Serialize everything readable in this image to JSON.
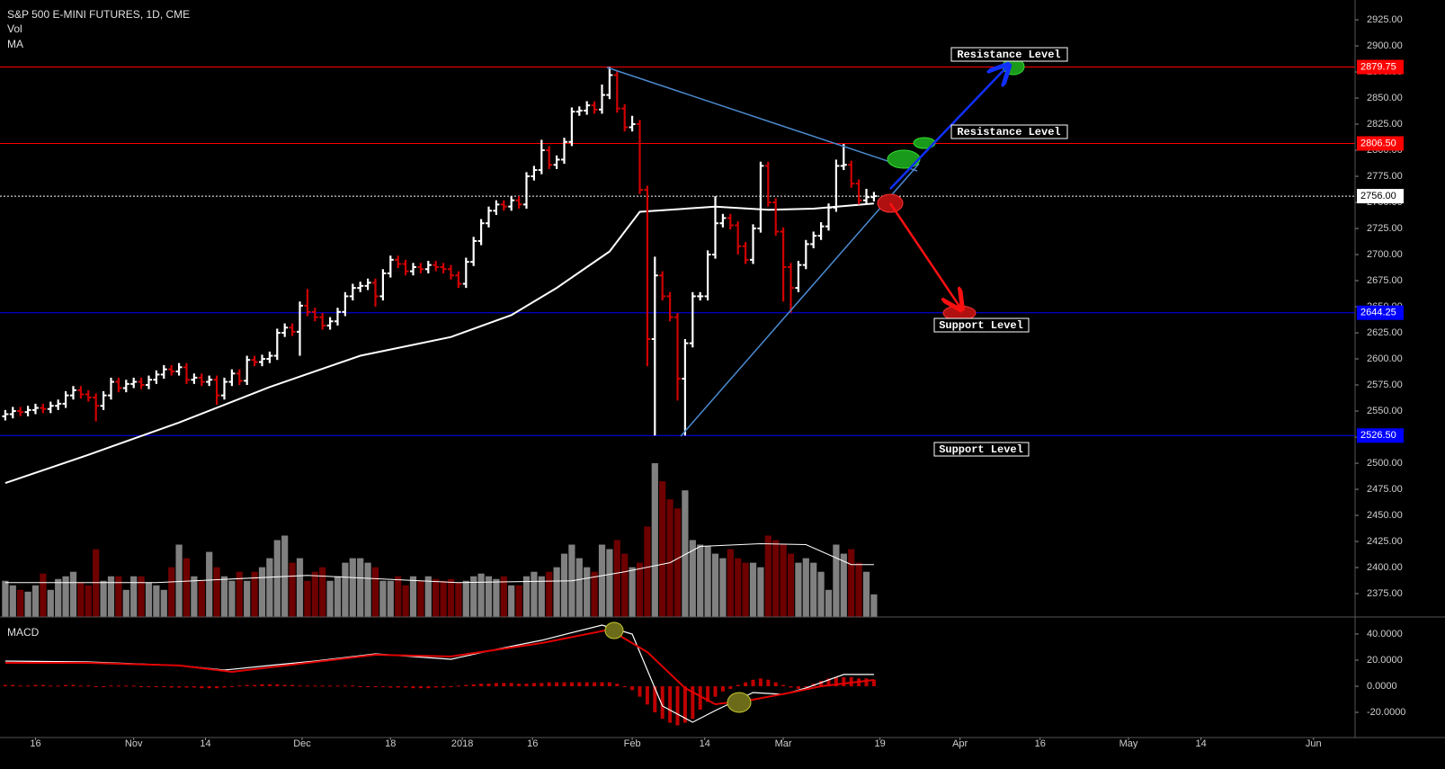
{
  "chart_data": {
    "type": "ohlc",
    "title": "S&P 500 E-MINI FUTURES, 1D, CME",
    "indicators": [
      "Vol",
      "MA"
    ],
    "up_color": "#ffffff",
    "down_color": "#d00000",
    "xlim": [
      -0.7,
      178.7
    ],
    "xticks": [
      {
        "value": 4,
        "label": "16"
      },
      {
        "value": 17,
        "label": "Nov"
      },
      {
        "value": 26.5,
        "label": "14"
      },
      {
        "value": 39.3,
        "label": "Dec"
      },
      {
        "value": 51,
        "label": "18"
      },
      {
        "value": 60.5,
        "label": "2018"
      },
      {
        "value": 69.8,
        "label": "16"
      },
      {
        "value": 83,
        "label": "Feb"
      },
      {
        "value": 92.6,
        "label": "14"
      },
      {
        "value": 103,
        "label": "Mar"
      },
      {
        "value": 115.8,
        "label": "19"
      },
      {
        "value": 126.4,
        "label": "Apr"
      },
      {
        "value": 137,
        "label": "16"
      },
      {
        "value": 148.7,
        "label": "May"
      },
      {
        "value": 158.3,
        "label": "14"
      },
      {
        "value": 173.2,
        "label": "Jun"
      }
    ],
    "ylim": [
      2352.6,
      2944
    ],
    "yticks": [
      {
        "value": 2925,
        "label": "2925.00"
      },
      {
        "value": 2900,
        "label": "2900.00"
      },
      {
        "value": 2875,
        "label": "2875.00"
      },
      {
        "value": 2850,
        "label": "2850.00"
      },
      {
        "value": 2825,
        "label": "2825.00"
      },
      {
        "value": 2800,
        "label": "2800.00"
      },
      {
        "value": 2775,
        "label": "2775.00"
      },
      {
        "value": 2750,
        "label": "2750.00"
      },
      {
        "value": 2725,
        "label": "2725.00"
      },
      {
        "value": 2700,
        "label": "2700.00"
      },
      {
        "value": 2675,
        "label": "2675.00"
      },
      {
        "value": 2650,
        "label": "2650.00"
      },
      {
        "value": 2625,
        "label": "2625.00"
      },
      {
        "value": 2600,
        "label": "2600.00"
      },
      {
        "value": 2575,
        "label": "2575.00"
      },
      {
        "value": 2550,
        "label": "2550.00"
      },
      {
        "value": 2525,
        "label": "2525.00"
      },
      {
        "value": 2500,
        "label": "2500.00"
      },
      {
        "value": 2475,
        "label": "2475.00"
      },
      {
        "value": 2450,
        "label": "2450.00"
      },
      {
        "value": 2425,
        "label": "2425.00"
      },
      {
        "value": 2400,
        "label": "2400.00"
      },
      {
        "value": 2375,
        "label": "2375.00"
      }
    ],
    "levels": [
      {
        "value": 2879.75,
        "label": "2879.75",
        "color": "#ff0000",
        "line": "solid"
      },
      {
        "value": 2806.5,
        "label": "2806.50",
        "color": "#ff0000",
        "line": "solid"
      },
      {
        "value": 2756,
        "label": "2756.00",
        "color": "#ffffff",
        "line": "dotted"
      },
      {
        "value": 2644.25,
        "label": "2644.25",
        "color": "#0000ff",
        "line": "solid"
      },
      {
        "value": 2526.5,
        "label": "2526.50",
        "color": "#0000ff",
        "line": "solid"
      }
    ],
    "annotations": [
      "Resistance Level",
      "Resistance Level",
      "Support Level",
      "Support Level"
    ],
    "ohlc": {
      "open": [
        2545,
        2547,
        2550,
        2549,
        2551,
        2553,
        2552,
        2555,
        2557,
        2565,
        2570,
        2566,
        2563,
        2555,
        2565,
        2578,
        2572,
        2576,
        2578,
        2575,
        2580,
        2585,
        2590,
        2588,
        2592,
        2580,
        2582,
        2578,
        2580,
        2565,
        2578,
        2586,
        2579,
        2599,
        2597,
        2600,
        2603,
        2625,
        2630,
        2626,
        2651,
        2645,
        2640,
        2632,
        2636,
        2645,
        2660,
        2668,
        2670,
        2673,
        2660,
        2682,
        2695,
        2691,
        2684,
        2688,
        2686,
        2690,
        2688,
        2686,
        2680,
        2672,
        2693,
        2713,
        2730,
        2742,
        2748,
        2746,
        2752,
        2748,
        2775,
        2781,
        2800,
        2786,
        2791,
        2808,
        2837,
        2838,
        2843,
        2839,
        2853,
        2872,
        2840,
        2822,
        2825,
        2762,
        2619,
        2680,
        2660,
        2640,
        2581,
        2615,
        2660,
        2660,
        2700,
        2730,
        2735,
        2728,
        2708,
        2695,
        2725,
        2785,
        2750,
        2722,
        2688,
        2668,
        2690,
        2710,
        2718,
        2727,
        2745,
        2785,
        2786,
        2768,
        2752,
        2755
      ],
      "high": [
        2551,
        2554,
        2554,
        2555,
        2557,
        2557,
        2559,
        2561,
        2569,
        2574,
        2574,
        2570,
        2567,
        2569,
        2582,
        2582,
        2580,
        2582,
        2582,
        2584,
        2589,
        2594,
        2594,
        2596,
        2596,
        2586,
        2586,
        2584,
        2584,
        2582,
        2590,
        2590,
        2603,
        2603,
        2604,
        2607,
        2629,
        2634,
        2634,
        2655,
        2667,
        2649,
        2644,
        2640,
        2649,
        2664,
        2672,
        2674,
        2677,
        2677,
        2686,
        2699,
        2699,
        2695,
        2692,
        2692,
        2694,
        2694,
        2692,
        2690,
        2684,
        2697,
        2717,
        2734,
        2746,
        2752,
        2752,
        2756,
        2756,
        2779,
        2785,
        2810,
        2804,
        2795,
        2812,
        2841,
        2842,
        2847,
        2847,
        2863,
        2879.75,
        2876,
        2844,
        2833,
        2829,
        2766,
        2698,
        2684,
        2664,
        2644,
        2619,
        2664,
        2664,
        2704,
        2756,
        2739,
        2739,
        2732,
        2712,
        2729,
        2789,
        2789,
        2754,
        2726,
        2692,
        2694,
        2714,
        2722,
        2731,
        2749,
        2791,
        2806,
        2790,
        2772,
        2763,
        2760
      ],
      "low": [
        2541,
        2543,
        2545,
        2545,
        2547,
        2548,
        2548,
        2551,
        2553,
        2561,
        2562,
        2559,
        2540,
        2551,
        2561,
        2568,
        2568,
        2572,
        2571,
        2571,
        2576,
        2581,
        2584,
        2584,
        2576,
        2576,
        2574,
        2574,
        2556,
        2561,
        2574,
        2575,
        2575,
        2593,
        2593,
        2596,
        2599,
        2621,
        2622,
        2603,
        2641,
        2636,
        2628,
        2628,
        2632,
        2641,
        2656,
        2664,
        2666,
        2650,
        2656,
        2678,
        2687,
        2680,
        2680,
        2682,
        2682,
        2684,
        2682,
        2676,
        2668,
        2668,
        2689,
        2709,
        2726,
        2738,
        2742,
        2742,
        2744,
        2744,
        2771,
        2777,
        2782,
        2782,
        2787,
        2804,
        2833,
        2834,
        2835,
        2835,
        2849,
        2836,
        2818,
        2818,
        2758,
        2593,
        2526.5,
        2656,
        2636,
        2560,
        2526.5,
        2611,
        2656,
        2656,
        2696,
        2726,
        2724,
        2700,
        2691,
        2691,
        2721,
        2746,
        2718,
        2655,
        2644.25,
        2664,
        2686,
        2706,
        2714,
        2723,
        2741,
        2781,
        2764,
        2748,
        2748,
        2751
      ],
      "close": [
        2547,
        2550,
        2549,
        2551,
        2553,
        2552,
        2555,
        2557,
        2565,
        2570,
        2566,
        2563,
        2555,
        2565,
        2578,
        2572,
        2576,
        2578,
        2575,
        2580,
        2585,
        2590,
        2588,
        2592,
        2580,
        2582,
        2578,
        2580,
        2565,
        2578,
        2586,
        2579,
        2599,
        2597,
        2600,
        2603,
        2625,
        2630,
        2626,
        2651,
        2645,
        2640,
        2632,
        2636,
        2645,
        2660,
        2668,
        2670,
        2673,
        2660,
        2682,
        2695,
        2691,
        2684,
        2688,
        2686,
        2690,
        2688,
        2686,
        2680,
        2672,
        2693,
        2713,
        2730,
        2742,
        2748,
        2746,
        2752,
        2748,
        2775,
        2781,
        2800,
        2786,
        2791,
        2808,
        2837,
        2838,
        2843,
        2839,
        2853,
        2872,
        2840,
        2822,
        2825,
        2762,
        2619,
        2680,
        2660,
        2640,
        2581,
        2615,
        2660,
        2660,
        2700,
        2730,
        2735,
        2728,
        2708,
        2695,
        2725,
        2785,
        2750,
        2722,
        2688,
        2668,
        2690,
        2710,
        2718,
        2727,
        2745,
        2785,
        2786,
        2768,
        2752,
        2755,
        2756
      ]
    },
    "ma": {
      "color": "#ffffff",
      "x": [
        0,
        11,
        23,
        35,
        47,
        59,
        67,
        73,
        80,
        84,
        94,
        101,
        107,
        115
      ],
      "values": [
        2481,
        2508,
        2539,
        2573,
        2603,
        2621,
        2642,
        2668,
        2703,
        2741,
        2746,
        2743,
        2744,
        2749
      ]
    },
    "volume": {
      "up_color": "#808080",
      "down_color": "#6e0000",
      "values": [
        1200,
        1050,
        900,
        840,
        1050,
        1440,
        900,
        1260,
        1350,
        1500,
        1140,
        1050,
        2250,
        1200,
        1350,
        1350,
        900,
        1350,
        1350,
        1140,
        1050,
        900,
        1650,
        2400,
        1950,
        1350,
        1200,
        2160,
        1650,
        1350,
        1200,
        1500,
        1200,
        1500,
        1650,
        1950,
        2550,
        2700,
        1800,
        1950,
        1200,
        1500,
        1650,
        1200,
        1350,
        1800,
        1950,
        1950,
        1800,
        1650,
        1200,
        1200,
        1350,
        1050,
        1350,
        1200,
        1350,
        1260,
        1200,
        1260,
        1140,
        1200,
        1350,
        1440,
        1350,
        1260,
        1350,
        1050,
        1050,
        1350,
        1500,
        1350,
        1500,
        1650,
        2100,
        2400,
        1950,
        1650,
        1500,
        2400,
        2250,
        2550,
        2100,
        1650,
        1800,
        3000,
        5100,
        4500,
        3900,
        3600,
        4200,
        2550,
        2400,
        2340,
        2100,
        1950,
        2250,
        1950,
        1800,
        1800,
        1650,
        2700,
        2550,
        2400,
        2100,
        1800,
        1950,
        1800,
        1500,
        900,
        2400,
        2100,
        2250,
        1800,
        1500,
        750
      ],
      "ma": {
        "color": "#ffffff",
        "x": [
          0,
          20,
          40,
          60,
          75,
          82,
          88,
          92,
          100,
          106,
          112,
          115
        ],
        "values": [
          1140,
          1140,
          1380,
          1140,
          1200,
          1500,
          1800,
          2340,
          2430,
          2400,
          1740,
          1740
        ]
      }
    },
    "macd": {
      "label": "MACD",
      "ylim": [
        -39.3,
        51.7
      ],
      "yticks": [
        {
          "value": 40,
          "label": "40.0000"
        },
        {
          "value": 20,
          "label": "20.0000"
        },
        {
          "value": 0,
          "label": "0.0000"
        },
        {
          "value": -20,
          "label": "-20.0000"
        }
      ],
      "macd_line": {
        "color": "#ffffff",
        "x": [
          0,
          11,
          23,
          29,
          35,
          41,
          49,
          59,
          65,
          71,
          79,
          83,
          85,
          87,
          91,
          94,
          99,
          103,
          106,
          111,
          115
        ],
        "values": [
          19.3,
          18.6,
          15.9,
          12.4,
          15.9,
          19.3,
          24.8,
          20.7,
          28.3,
          35.2,
          46.9,
          40,
          12.4,
          -15.2,
          -27.6,
          -18.6,
          -4.8,
          -6.2,
          -1.4,
          9,
          9
        ]
      },
      "signal_line": {
        "color": "#e00000",
        "x": [
          0,
          11,
          23,
          30,
          39,
          49,
          59,
          71,
          80,
          85,
          90,
          94,
          99,
          104,
          108,
          115
        ],
        "values": [
          17.9,
          17.9,
          15.9,
          11,
          17.2,
          24.1,
          22.8,
          33.1,
          43.4,
          26.2,
          -1.4,
          -13.8,
          -10.3,
          -4.8,
          0,
          4.8
        ]
      },
      "histogram": {
        "color": "#c00000",
        "values": [
          1,
          1,
          0.5,
          0.5,
          1,
          1,
          0.5,
          0.5,
          1,
          1,
          0.5,
          0.5,
          -0.5,
          -0.5,
          0.5,
          0.5,
          0.5,
          0.5,
          0,
          0,
          -0.5,
          -0.5,
          -1,
          -1,
          -1,
          -1,
          -1.5,
          -1.5,
          -1.5,
          -1,
          -0.5,
          0.5,
          1,
          1,
          1.5,
          1.5,
          1.5,
          1,
          1,
          0.5,
          0.5,
          0.5,
          0.5,
          0.5,
          0.5,
          0.5,
          0.5,
          0,
          0,
          -0.5,
          -0.5,
          -1,
          -1,
          -1,
          -1.5,
          -1.5,
          -1.5,
          -1,
          -1,
          -0.5,
          0.5,
          1,
          1.5,
          2,
          2,
          2.5,
          2.5,
          2.5,
          2,
          2,
          2.5,
          2.5,
          3,
          3,
          3,
          3,
          3,
          3,
          3,
          3,
          3,
          2,
          0,
          -3,
          -8,
          -14,
          -20,
          -25,
          -28,
          -30,
          -28,
          -25,
          -18,
          -12,
          -8,
          -4,
          -2,
          1,
          3,
          5,
          6,
          5,
          3,
          1,
          -1,
          -2,
          0,
          2,
          4,
          6,
          7,
          7,
          7,
          6,
          6,
          5
        ]
      }
    }
  }
}
